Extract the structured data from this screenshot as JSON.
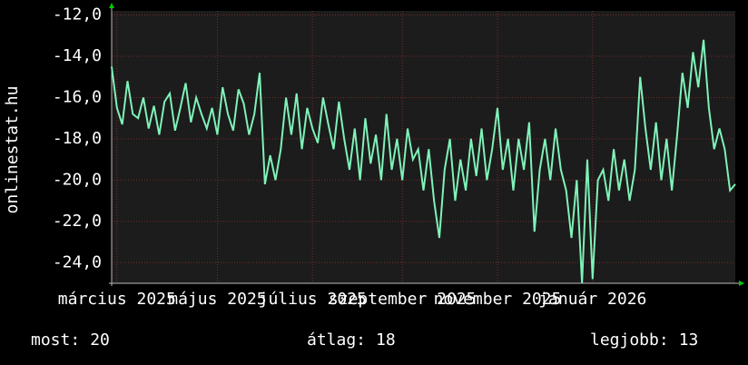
{
  "chart_data": {
    "type": "line",
    "y_label": "onlinestat.hu",
    "x": [
      0,
      1,
      2,
      3,
      4,
      5,
      6,
      7,
      8,
      9,
      10,
      11,
      12,
      13,
      14,
      15,
      16,
      17,
      18,
      19,
      20,
      21,
      22,
      23,
      24,
      25,
      26,
      27,
      28,
      29,
      30,
      31,
      32,
      33,
      34,
      35,
      36,
      37,
      38,
      39,
      40,
      41,
      42,
      43,
      44,
      45,
      46,
      47,
      48,
      49,
      50,
      51,
      52,
      53,
      54,
      55,
      56,
      57,
      58,
      59,
      60,
      61,
      62,
      63,
      64,
      65,
      66,
      67,
      68,
      69,
      70,
      71,
      72,
      73,
      74,
      75,
      76,
      77,
      78,
      79,
      80,
      81,
      82,
      83,
      84,
      85,
      86,
      87,
      88,
      89,
      90,
      91,
      92,
      93,
      94,
      95,
      96,
      97,
      98,
      99,
      100,
      101,
      102,
      103,
      104,
      105,
      106,
      107,
      108,
      109,
      110,
      111,
      112,
      113,
      114,
      115,
      116,
      117,
      118
    ],
    "series": [
      {
        "name": "onlinestat.hu",
        "color": "#7ff2b8",
        "values": [
          -14.5,
          -16.5,
          -17.3,
          -15.2,
          -16.8,
          -17.0,
          -16.0,
          -17.5,
          -16.4,
          -17.8,
          -16.2,
          -15.8,
          -17.6,
          -16.5,
          -15.3,
          -17.2,
          -16.0,
          -16.8,
          -17.5,
          -16.5,
          -17.8,
          -15.5,
          -16.8,
          -17.6,
          -15.6,
          -16.3,
          -17.8,
          -16.8,
          -14.8,
          -20.2,
          -18.8,
          -20.0,
          -18.5,
          -16.0,
          -17.8,
          -15.8,
          -18.5,
          -16.5,
          -17.5,
          -18.2,
          -16.0,
          -17.3,
          -18.5,
          -16.2,
          -18.0,
          -19.5,
          -17.5,
          -20.0,
          -17.0,
          -19.2,
          -17.8,
          -20.0,
          -16.8,
          -19.5,
          -18.0,
          -20.0,
          -17.5,
          -19.0,
          -18.5,
          -20.5,
          -18.5,
          -21.0,
          -22.8,
          -19.5,
          -18.0,
          -21.0,
          -19.0,
          -20.5,
          -18.0,
          -19.8,
          -17.5,
          -20.0,
          -18.5,
          -16.5,
          -19.5,
          -18.0,
          -20.5,
          -18.0,
          -19.5,
          -17.2,
          -22.5,
          -19.5,
          -18.0,
          -20.0,
          -17.5,
          -19.5,
          -20.5,
          -22.8,
          -20.0,
          -25.0,
          -19.0,
          -24.8,
          -20.0,
          -19.5,
          -21.0,
          -18.5,
          -20.5,
          -19.0,
          -21.0,
          -19.5,
          -15.0,
          -17.5,
          -19.5,
          -17.2,
          -20.0,
          -18.0,
          -20.5,
          -17.8,
          -14.8,
          -16.5,
          -13.8,
          -15.5,
          -13.2,
          -16.5,
          -18.5,
          -17.5,
          -18.5,
          -20.5,
          -20.2
        ]
      }
    ],
    "xlim": [
      0,
      118
    ],
    "xticks": [
      {
        "value": 1,
        "label": "március 2025"
      },
      {
        "value": 20,
        "label": "május 2025"
      },
      {
        "value": 38,
        "label": "július 2025"
      },
      {
        "value": 55,
        "label": "szeptember 2025"
      },
      {
        "value": 73,
        "label": "november 2025"
      },
      {
        "value": 91,
        "label": "január 2026"
      }
    ],
    "ylim": [
      -25,
      -11.8
    ],
    "yticks": [
      {
        "value": -24,
        "label": "-24,0"
      },
      {
        "value": -22,
        "label": "-22,0"
      },
      {
        "value": -20,
        "label": "-20,0"
      },
      {
        "value": -18,
        "label": "-18,0"
      },
      {
        "value": -16,
        "label": "-16,0"
      },
      {
        "value": -14,
        "label": "-14,0"
      },
      {
        "value": -12,
        "label": "-12,0"
      }
    ],
    "grid": true,
    "stats": [
      {
        "label": "most:",
        "value": 20
      },
      {
        "label": "átlag:",
        "value": 18
      },
      {
        "label": "legjobb:",
        "value": 13
      }
    ]
  }
}
